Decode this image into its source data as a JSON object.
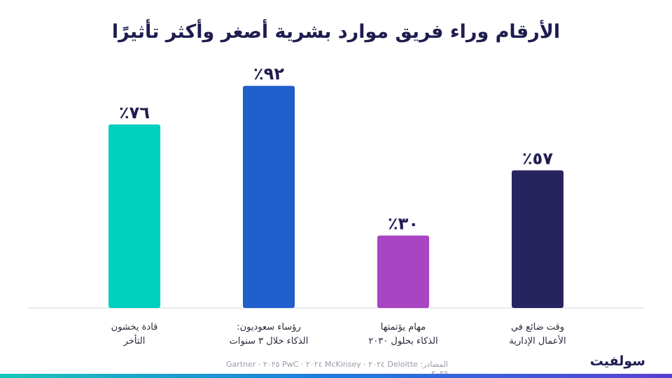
{
  "title": "الأرقام وراء فريق موارد بشرية أصغر وأكثر تأثيرًا",
  "source": "المصادر: Deloitte ٢٠٢٤ · McKinsey ٢٠٢٤ · PwC ٢٠٢٥ · Gartner ٢٠٢٥",
  "brand": "سولفيت",
  "chart_data": {
    "type": "bar",
    "title": "الأرقام وراء فريق موارد بشرية أصغر وأكثر تأثيرًا",
    "ylim": [
      0,
      100
    ],
    "grid": false,
    "categories": [
      [
        "قادة يخشون",
        "التأخر"
      ],
      [
        "رؤساء سعوديون:",
        "الذكاء خلال ٣ سنوات"
      ],
      [
        "مهام يؤتمتها",
        "الذكاء بحلول ٢٠٣٠"
      ],
      [
        "وقت ضائع في",
        "الأعمال الإدارية"
      ]
    ],
    "values": [
      76,
      92,
      30,
      57
    ],
    "value_labels": [
      "٧٦٪",
      "٩٢٪",
      "٣٠٪",
      "٥٧٪"
    ],
    "colors": [
      "#00d1bf",
      "#1f5fcc",
      "#a944c2",
      "#27235e"
    ]
  }
}
